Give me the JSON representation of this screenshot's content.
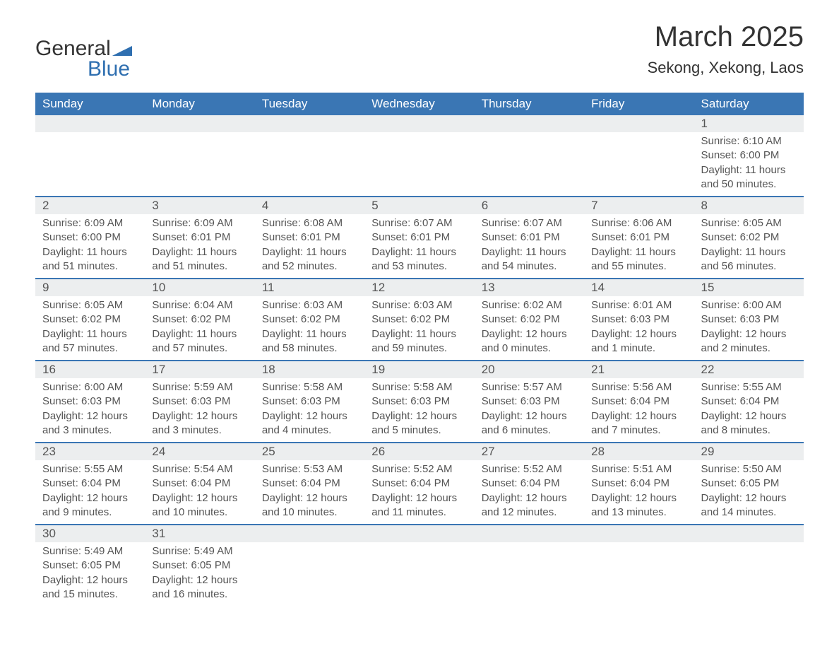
{
  "brand": {
    "name_top": "General",
    "name_bottom": "Blue"
  },
  "title": "March 2025",
  "location": "Sekong, Xekong, Laos",
  "colors": {
    "header_bg": "#3a76b4",
    "header_text": "#ffffff",
    "daynum_bg": "#eceeef",
    "row_border": "#3a76b4",
    "text": "#555555",
    "brand_blue": "#2f6fb0"
  },
  "layout": {
    "columns": 7,
    "start_day_index": 6,
    "font_family": "Arial"
  },
  "weekdays": [
    "Sunday",
    "Monday",
    "Tuesday",
    "Wednesday",
    "Thursday",
    "Friday",
    "Saturday"
  ],
  "days": [
    {
      "n": "1",
      "sunrise": "Sunrise: 6:10 AM",
      "sunset": "Sunset: 6:00 PM",
      "day1": "Daylight: 11 hours",
      "day2": "and 50 minutes."
    },
    {
      "n": "2",
      "sunrise": "Sunrise: 6:09 AM",
      "sunset": "Sunset: 6:00 PM",
      "day1": "Daylight: 11 hours",
      "day2": "and 51 minutes."
    },
    {
      "n": "3",
      "sunrise": "Sunrise: 6:09 AM",
      "sunset": "Sunset: 6:01 PM",
      "day1": "Daylight: 11 hours",
      "day2": "and 51 minutes."
    },
    {
      "n": "4",
      "sunrise": "Sunrise: 6:08 AM",
      "sunset": "Sunset: 6:01 PM",
      "day1": "Daylight: 11 hours",
      "day2": "and 52 minutes."
    },
    {
      "n": "5",
      "sunrise": "Sunrise: 6:07 AM",
      "sunset": "Sunset: 6:01 PM",
      "day1": "Daylight: 11 hours",
      "day2": "and 53 minutes."
    },
    {
      "n": "6",
      "sunrise": "Sunrise: 6:07 AM",
      "sunset": "Sunset: 6:01 PM",
      "day1": "Daylight: 11 hours",
      "day2": "and 54 minutes."
    },
    {
      "n": "7",
      "sunrise": "Sunrise: 6:06 AM",
      "sunset": "Sunset: 6:01 PM",
      "day1": "Daylight: 11 hours",
      "day2": "and 55 minutes."
    },
    {
      "n": "8",
      "sunrise": "Sunrise: 6:05 AM",
      "sunset": "Sunset: 6:02 PM",
      "day1": "Daylight: 11 hours",
      "day2": "and 56 minutes."
    },
    {
      "n": "9",
      "sunrise": "Sunrise: 6:05 AM",
      "sunset": "Sunset: 6:02 PM",
      "day1": "Daylight: 11 hours",
      "day2": "and 57 minutes."
    },
    {
      "n": "10",
      "sunrise": "Sunrise: 6:04 AM",
      "sunset": "Sunset: 6:02 PM",
      "day1": "Daylight: 11 hours",
      "day2": "and 57 minutes."
    },
    {
      "n": "11",
      "sunrise": "Sunrise: 6:03 AM",
      "sunset": "Sunset: 6:02 PM",
      "day1": "Daylight: 11 hours",
      "day2": "and 58 minutes."
    },
    {
      "n": "12",
      "sunrise": "Sunrise: 6:03 AM",
      "sunset": "Sunset: 6:02 PM",
      "day1": "Daylight: 11 hours",
      "day2": "and 59 minutes."
    },
    {
      "n": "13",
      "sunrise": "Sunrise: 6:02 AM",
      "sunset": "Sunset: 6:02 PM",
      "day1": "Daylight: 12 hours",
      "day2": "and 0 minutes."
    },
    {
      "n": "14",
      "sunrise": "Sunrise: 6:01 AM",
      "sunset": "Sunset: 6:03 PM",
      "day1": "Daylight: 12 hours",
      "day2": "and 1 minute."
    },
    {
      "n": "15",
      "sunrise": "Sunrise: 6:00 AM",
      "sunset": "Sunset: 6:03 PM",
      "day1": "Daylight: 12 hours",
      "day2": "and 2 minutes."
    },
    {
      "n": "16",
      "sunrise": "Sunrise: 6:00 AM",
      "sunset": "Sunset: 6:03 PM",
      "day1": "Daylight: 12 hours",
      "day2": "and 3 minutes."
    },
    {
      "n": "17",
      "sunrise": "Sunrise: 5:59 AM",
      "sunset": "Sunset: 6:03 PM",
      "day1": "Daylight: 12 hours",
      "day2": "and 3 minutes."
    },
    {
      "n": "18",
      "sunrise": "Sunrise: 5:58 AM",
      "sunset": "Sunset: 6:03 PM",
      "day1": "Daylight: 12 hours",
      "day2": "and 4 minutes."
    },
    {
      "n": "19",
      "sunrise": "Sunrise: 5:58 AM",
      "sunset": "Sunset: 6:03 PM",
      "day1": "Daylight: 12 hours",
      "day2": "and 5 minutes."
    },
    {
      "n": "20",
      "sunrise": "Sunrise: 5:57 AM",
      "sunset": "Sunset: 6:03 PM",
      "day1": "Daylight: 12 hours",
      "day2": "and 6 minutes."
    },
    {
      "n": "21",
      "sunrise": "Sunrise: 5:56 AM",
      "sunset": "Sunset: 6:04 PM",
      "day1": "Daylight: 12 hours",
      "day2": "and 7 minutes."
    },
    {
      "n": "22",
      "sunrise": "Sunrise: 5:55 AM",
      "sunset": "Sunset: 6:04 PM",
      "day1": "Daylight: 12 hours",
      "day2": "and 8 minutes."
    },
    {
      "n": "23",
      "sunrise": "Sunrise: 5:55 AM",
      "sunset": "Sunset: 6:04 PM",
      "day1": "Daylight: 12 hours",
      "day2": "and 9 minutes."
    },
    {
      "n": "24",
      "sunrise": "Sunrise: 5:54 AM",
      "sunset": "Sunset: 6:04 PM",
      "day1": "Daylight: 12 hours",
      "day2": "and 10 minutes."
    },
    {
      "n": "25",
      "sunrise": "Sunrise: 5:53 AM",
      "sunset": "Sunset: 6:04 PM",
      "day1": "Daylight: 12 hours",
      "day2": "and 10 minutes."
    },
    {
      "n": "26",
      "sunrise": "Sunrise: 5:52 AM",
      "sunset": "Sunset: 6:04 PM",
      "day1": "Daylight: 12 hours",
      "day2": "and 11 minutes."
    },
    {
      "n": "27",
      "sunrise": "Sunrise: 5:52 AM",
      "sunset": "Sunset: 6:04 PM",
      "day1": "Daylight: 12 hours",
      "day2": "and 12 minutes."
    },
    {
      "n": "28",
      "sunrise": "Sunrise: 5:51 AM",
      "sunset": "Sunset: 6:04 PM",
      "day1": "Daylight: 12 hours",
      "day2": "and 13 minutes."
    },
    {
      "n": "29",
      "sunrise": "Sunrise: 5:50 AM",
      "sunset": "Sunset: 6:05 PM",
      "day1": "Daylight: 12 hours",
      "day2": "and 14 minutes."
    },
    {
      "n": "30",
      "sunrise": "Sunrise: 5:49 AM",
      "sunset": "Sunset: 6:05 PM",
      "day1": "Daylight: 12 hours",
      "day2": "and 15 minutes."
    },
    {
      "n": "31",
      "sunrise": "Sunrise: 5:49 AM",
      "sunset": "Sunset: 6:05 PM",
      "day1": "Daylight: 12 hours",
      "day2": "and 16 minutes."
    }
  ]
}
